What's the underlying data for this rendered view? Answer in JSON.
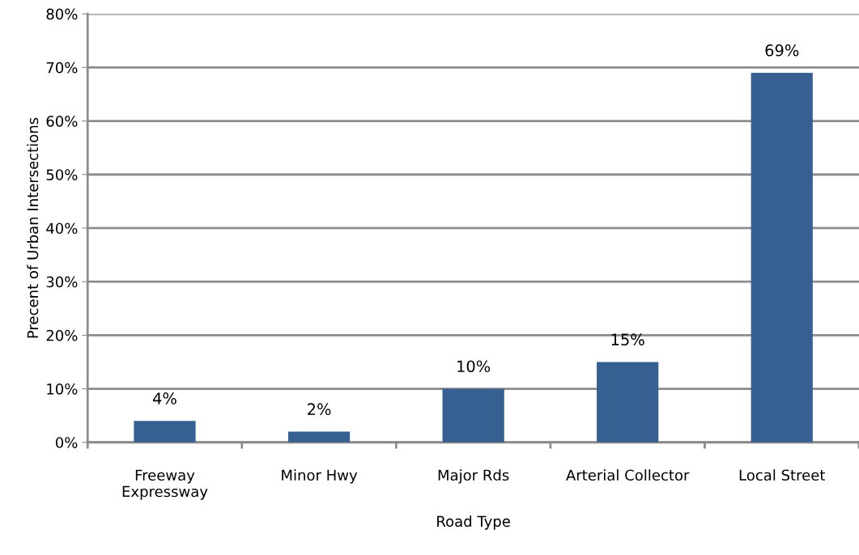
{
  "chart_data": {
    "type": "bar",
    "categories": [
      "Freeway\nExpressway",
      "Minor Hwy",
      "Major Rds",
      "Arterial Collector",
      "Local Street"
    ],
    "values": [
      4,
      2,
      10,
      15,
      69
    ],
    "value_labels": [
      "4%",
      "2%",
      "10%",
      "15%",
      "69%"
    ],
    "color": "#366092",
    "xlabel": "Road Type",
    "ylabel": "Precent of Urban Intersections",
    "ylim": [
      0,
      80
    ],
    "yticks": [
      {
        "value": 0,
        "label": "0%"
      },
      {
        "value": 10,
        "label": "10%"
      },
      {
        "value": 20,
        "label": "20%"
      },
      {
        "value": 30,
        "label": "30%"
      },
      {
        "value": 40,
        "label": "40%"
      },
      {
        "value": 50,
        "label": "50%"
      },
      {
        "value": 60,
        "label": "60%"
      },
      {
        "value": 70,
        "label": "70%"
      },
      {
        "value": 80,
        "label": "80%"
      }
    ],
    "grid": "y"
  }
}
